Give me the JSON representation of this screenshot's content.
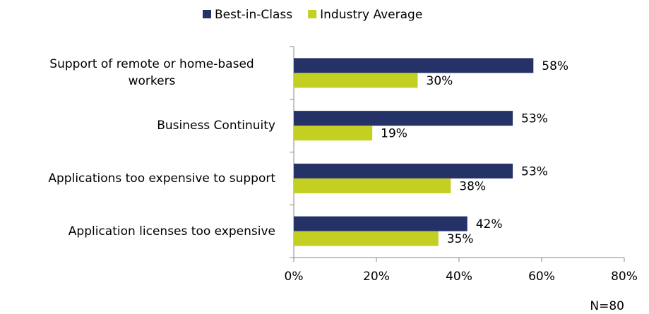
{
  "chart_data": {
    "type": "bar",
    "orientation": "horizontal",
    "categories": [
      "Support of remote or home-based workers",
      "Business Continuity",
      "Applications too expensive to support",
      "Application licenses too expensive"
    ],
    "series": [
      {
        "name": "Best-in-Class",
        "color": "#253268",
        "values": [
          58,
          53,
          53,
          42
        ],
        "value_labels": [
          "58%",
          "53%",
          "53%",
          "42%"
        ]
      },
      {
        "name": "Industry Average",
        "color": "#c3cf21",
        "values": [
          30,
          19,
          38,
          35
        ],
        "value_labels": [
          "30%",
          "19%",
          "38%",
          "35%"
        ]
      }
    ],
    "xlim": [
      0,
      80
    ],
    "xticks": [
      {
        "value": 0,
        "label": "0%"
      },
      {
        "value": 20,
        "label": "20%"
      },
      {
        "value": 40,
        "label": "40%"
      },
      {
        "value": 60,
        "label": "60%"
      },
      {
        "value": 80,
        "label": "80%"
      }
    ],
    "legend": "top",
    "note": "N=80"
  }
}
